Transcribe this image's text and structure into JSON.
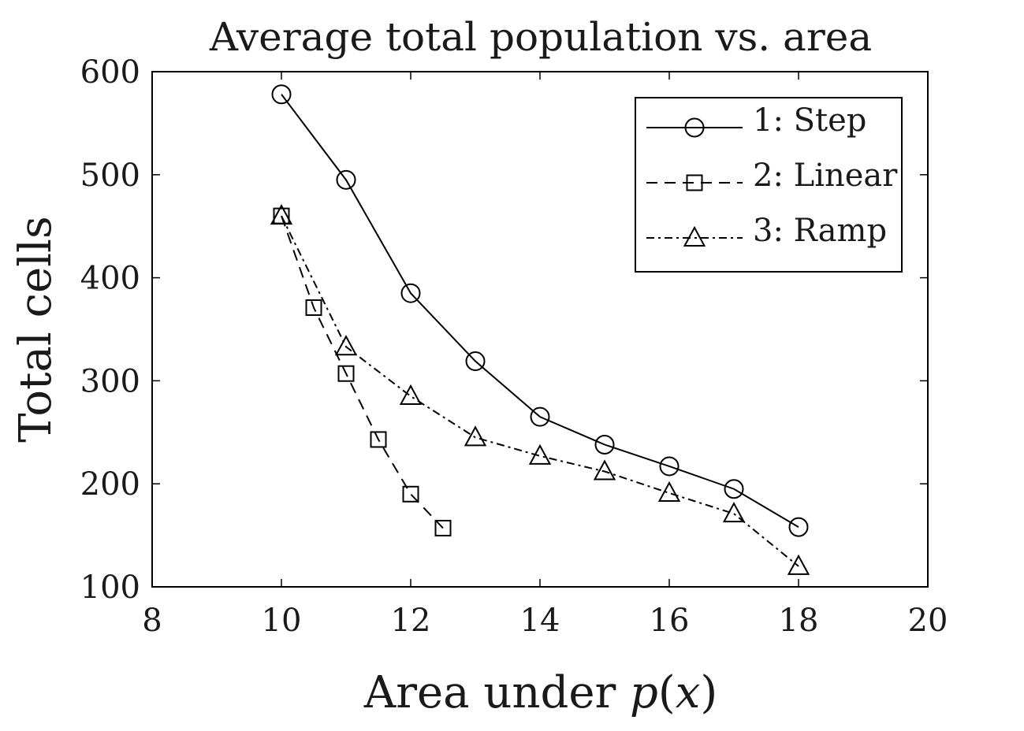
{
  "chart_data": {
    "type": "line",
    "title": "Average total population vs. area",
    "xlabel_prefix": "Area under ",
    "xlabel_p": "p",
    "xlabel_open": "(",
    "xlabel_x": "x",
    "xlabel_close": ")",
    "ylabel": "Total cells",
    "xlim": [
      8,
      20
    ],
    "ylim": [
      100,
      600
    ],
    "xticks": [
      8,
      10,
      12,
      14,
      16,
      18,
      20
    ],
    "yticks": [
      100,
      200,
      300,
      400,
      500,
      600
    ],
    "grid": false,
    "legend_position": "top-right",
    "series": [
      {
        "name": "1: Step",
        "marker": "circle",
        "linestyle": "solid",
        "x": [
          10,
          11,
          12,
          13,
          14,
          15,
          16,
          17,
          18
        ],
        "y": [
          578,
          495,
          385,
          319,
          265,
          238,
          217,
          195,
          158
        ]
      },
      {
        "name": "2: Linear",
        "marker": "square",
        "linestyle": "dashed",
        "x": [
          10,
          10.5,
          11,
          11.5,
          12,
          12.5
        ],
        "y": [
          460,
          371,
          307,
          243,
          190,
          157
        ]
      },
      {
        "name": "3: Ramp",
        "marker": "triangle",
        "linestyle": "dashdot",
        "x": [
          10,
          11,
          12,
          13,
          14,
          15,
          16,
          17,
          18
        ],
        "y": [
          460,
          333,
          285,
          245,
          227,
          212,
          191,
          171,
          120
        ]
      }
    ],
    "colors": {
      "line": "#000000",
      "text": "#1a1a1a"
    }
  }
}
